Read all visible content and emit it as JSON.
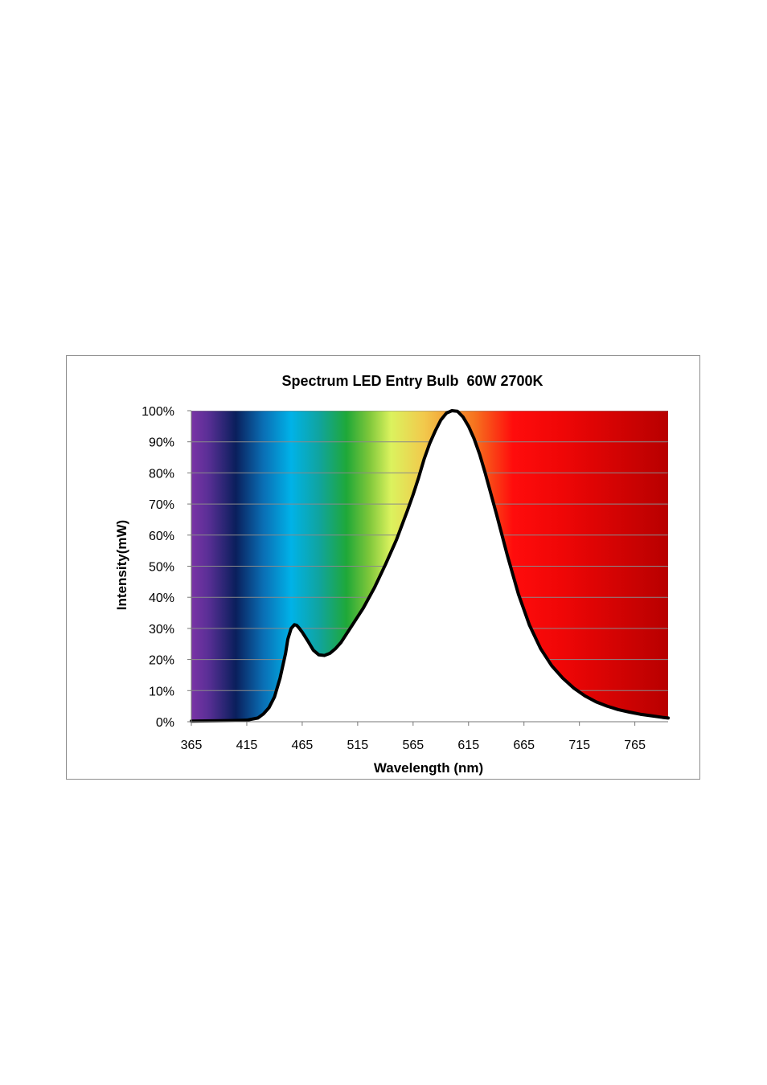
{
  "chart_data": {
    "type": "area",
    "title": "Spectrum LED Entry Bulb  60W 2700K",
    "xlabel": "Wavelength (nm)",
    "ylabel": "Intensity(mW)",
    "xlim": [
      365,
      795
    ],
    "ylim": [
      0,
      100
    ],
    "x_ticks": [
      "365",
      "415",
      "465",
      "515",
      "565",
      "615",
      "665",
      "715",
      "765"
    ],
    "y_ticks": [
      "0%",
      "10%",
      "20%",
      "30%",
      "40%",
      "50%",
      "60%",
      "70%",
      "80%",
      "90%",
      "100%"
    ],
    "grid": true,
    "legend": "none",
    "background": "visible-spectrum color gradient filling the area above the curve",
    "gradient_stops": [
      {
        "wavelength": 365,
        "color": "#7a34a6"
      },
      {
        "wavelength": 380,
        "color": "#5a2f96"
      },
      {
        "wavelength": 405,
        "color": "#0a1f5c"
      },
      {
        "wavelength": 430,
        "color": "#0a6fb5"
      },
      {
        "wavelength": 455,
        "color": "#00b2e8"
      },
      {
        "wavelength": 480,
        "color": "#10a4a0"
      },
      {
        "wavelength": 505,
        "color": "#1fa838"
      },
      {
        "wavelength": 525,
        "color": "#7cc63a"
      },
      {
        "wavelength": 545,
        "color": "#dbf25e"
      },
      {
        "wavelength": 575,
        "color": "#f2c94c"
      },
      {
        "wavelength": 620,
        "color": "#f6741f"
      },
      {
        "wavelength": 655,
        "color": "#ff0c0c"
      },
      {
        "wavelength": 700,
        "color": "#ef0606"
      },
      {
        "wavelength": 795,
        "color": "#b80000"
      }
    ],
    "series": [
      {
        "color": "#000000",
        "x": [
          365,
          385,
          405,
          415,
          425,
          430,
          435,
          440,
          445,
          450,
          452,
          455,
          458,
          460,
          462,
          465,
          470,
          475,
          480,
          485,
          490,
          495,
          500,
          510,
          520,
          530,
          540,
          550,
          560,
          565,
          570,
          575,
          580,
          585,
          590,
          595,
          600,
          605,
          610,
          615,
          620,
          625,
          630,
          640,
          650,
          660,
          670,
          680,
          690,
          700,
          710,
          720,
          730,
          740,
          750,
          760,
          770,
          780,
          790,
          795
        ],
        "y": [
          0.2,
          0.3,
          0.4,
          0.5,
          1.2,
          2.5,
          4.5,
          8.0,
          14.0,
          22.0,
          26.5,
          30.0,
          31.2,
          31.0,
          30.2,
          28.8,
          26.0,
          23.0,
          21.5,
          21.3,
          22.0,
          23.5,
          25.5,
          31.0,
          36.5,
          43.0,
          50.5,
          58.5,
          68.0,
          73.0,
          78.5,
          84.5,
          89.5,
          93.5,
          97.0,
          99.2,
          100.0,
          99.8,
          98.0,
          95.0,
          91.0,
          86.0,
          80.0,
          67.0,
          53.5,
          41.0,
          31.0,
          23.5,
          18.0,
          14.0,
          10.8,
          8.3,
          6.4,
          5.0,
          3.9,
          3.1,
          2.4,
          1.9,
          1.4,
          1.2
        ]
      }
    ]
  }
}
